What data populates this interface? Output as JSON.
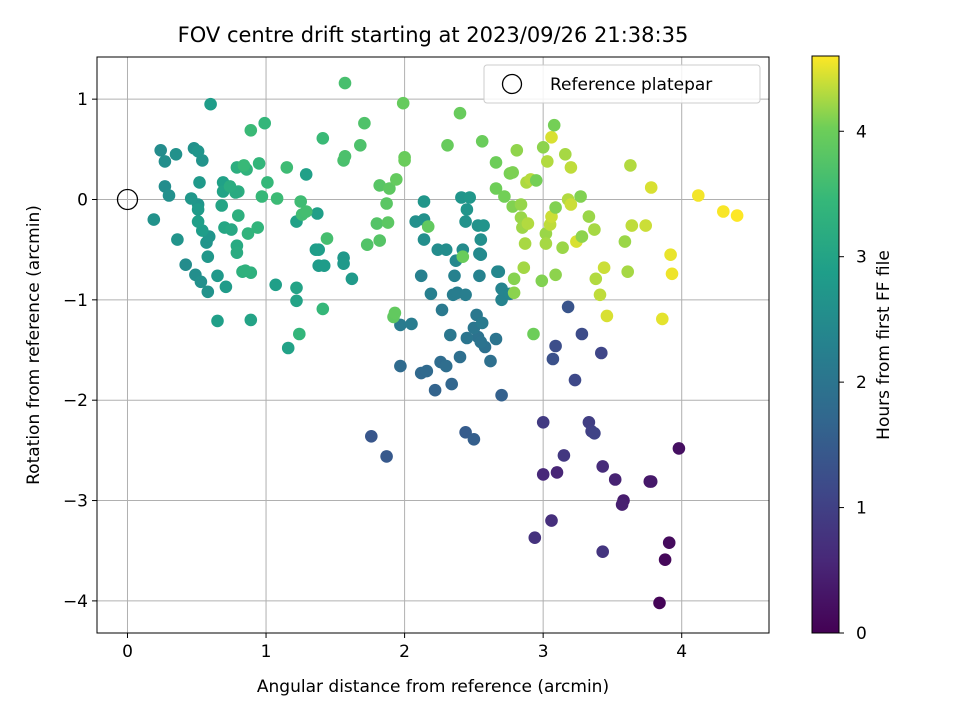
{
  "chart_data": {
    "type": "scatter",
    "title": "FOV centre drift starting at 2023/09/26 21:38:35",
    "xlabel": "Angular distance from reference (arcmin)",
    "ylabel": "Rotation from reference (arcmin)",
    "xlim": [
      -0.22,
      4.63
    ],
    "ylim": [
      -4.32,
      1.42
    ],
    "xticks": [
      0,
      1,
      2,
      3,
      4
    ],
    "yticks": [
      -4,
      -3,
      -2,
      -1,
      0,
      1
    ],
    "grid": true,
    "legend": {
      "position": "top-right",
      "label": "Reference platepar"
    },
    "reference_point": {
      "x": 0,
      "y": 0
    },
    "colorbar": {
      "label": "Hours from first FF file",
      "colormap": "viridis",
      "min": 0,
      "max": 4.6,
      "ticks": [
        0,
        1,
        2,
        3,
        4
      ]
    },
    "points": [
      {
        "x": 3.84,
        "y": -4.02,
        "c": 0.05
      },
      {
        "x": 3.88,
        "y": -3.59,
        "c": 0.1
      },
      {
        "x": 3.91,
        "y": -3.42,
        "c": 0.15
      },
      {
        "x": 3.98,
        "y": -2.48,
        "c": 0.2
      },
      {
        "x": 3.77,
        "y": -2.81,
        "c": 0.3
      },
      {
        "x": 3.78,
        "y": -2.81,
        "c": 0.35
      },
      {
        "x": 3.58,
        "y": -3.0,
        "c": 0.4
      },
      {
        "x": 3.57,
        "y": -3.04,
        "c": 0.45
      },
      {
        "x": 3.52,
        "y": -2.79,
        "c": 0.5
      },
      {
        "x": 3.1,
        "y": -2.72,
        "c": 0.55
      },
      {
        "x": 3.0,
        "y": -2.74,
        "c": 0.6
      },
      {
        "x": 3.43,
        "y": -2.66,
        "c": 0.65
      },
      {
        "x": 3.06,
        "y": -3.2,
        "c": 0.7
      },
      {
        "x": 2.94,
        "y": -3.37,
        "c": 0.75
      },
      {
        "x": 3.43,
        "y": -3.51,
        "c": 0.8
      },
      {
        "x": 3.15,
        "y": -2.55,
        "c": 0.85
      },
      {
        "x": 3.0,
        "y": -2.22,
        "c": 0.9
      },
      {
        "x": 3.33,
        "y": -2.22,
        "c": 0.95
      },
      {
        "x": 3.35,
        "y": -2.31,
        "c": 1.0
      },
      {
        "x": 3.37,
        "y": -2.33,
        "c": 1.05
      },
      {
        "x": 3.42,
        "y": -1.53,
        "c": 1.1
      },
      {
        "x": 3.23,
        "y": -1.8,
        "c": 1.15
      },
      {
        "x": 3.28,
        "y": -1.34,
        "c": 1.2
      },
      {
        "x": 3.09,
        "y": -1.46,
        "c": 1.25
      },
      {
        "x": 3.07,
        "y": -1.59,
        "c": 1.3
      },
      {
        "x": 3.18,
        "y": -1.07,
        "c": 1.35
      },
      {
        "x": 1.76,
        "y": -2.36,
        "c": 1.4
      },
      {
        "x": 1.87,
        "y": -2.56,
        "c": 1.45
      },
      {
        "x": 2.44,
        "y": -2.32,
        "c": 1.5
      },
      {
        "x": 2.5,
        "y": -2.39,
        "c": 1.55
      },
      {
        "x": 2.7,
        "y": -1.95,
        "c": 1.6
      },
      {
        "x": 2.22,
        "y": -1.9,
        "c": 1.65
      },
      {
        "x": 2.34,
        "y": -1.84,
        "c": 1.7
      },
      {
        "x": 2.12,
        "y": -1.73,
        "c": 1.75
      },
      {
        "x": 2.16,
        "y": -1.71,
        "c": 1.78
      },
      {
        "x": 1.97,
        "y": -1.66,
        "c": 1.8
      },
      {
        "x": 2.26,
        "y": -1.62,
        "c": 1.82
      },
      {
        "x": 2.3,
        "y": -1.66,
        "c": 1.85
      },
      {
        "x": 2.4,
        "y": -1.57,
        "c": 1.88
      },
      {
        "x": 2.62,
        "y": -1.61,
        "c": 1.9
      },
      {
        "x": 2.58,
        "y": -1.47,
        "c": 1.92
      },
      {
        "x": 2.53,
        "y": -1.37,
        "c": 1.95
      },
      {
        "x": 2.55,
        "y": -1.42,
        "c": 1.97
      },
      {
        "x": 2.66,
        "y": -1.39,
        "c": 2.0
      },
      {
        "x": 2.45,
        "y": -1.38,
        "c": 2.02
      },
      {
        "x": 2.5,
        "y": -1.28,
        "c": 2.04
      },
      {
        "x": 2.33,
        "y": -1.35,
        "c": 2.06
      },
      {
        "x": 2.52,
        "y": -1.15,
        "c": 2.08
      },
      {
        "x": 2.27,
        "y": -1.1,
        "c": 2.1
      },
      {
        "x": 2.56,
        "y": -1.23,
        "c": 2.12
      },
      {
        "x": 1.97,
        "y": -1.25,
        "c": 2.14
      },
      {
        "x": 2.05,
        "y": -1.24,
        "c": 2.16
      },
      {
        "x": 2.35,
        "y": -0.95,
        "c": 2.18
      },
      {
        "x": 2.38,
        "y": -0.93,
        "c": 2.2
      },
      {
        "x": 2.44,
        "y": -0.95,
        "c": 2.22
      },
      {
        "x": 2.19,
        "y": -0.94,
        "c": 2.24
      },
      {
        "x": 2.12,
        "y": -0.76,
        "c": 2.26
      },
      {
        "x": 2.36,
        "y": -0.76,
        "c": 2.28
      },
      {
        "x": 2.54,
        "y": -0.76,
        "c": 2.3
      },
      {
        "x": 2.7,
        "y": -1.0,
        "c": 2.32
      },
      {
        "x": 2.7,
        "y": -0.89,
        "c": 2.34
      },
      {
        "x": 2.76,
        "y": -0.94,
        "c": 2.36
      },
      {
        "x": 2.68,
        "y": -0.72,
        "c": 2.38
      },
      {
        "x": 2.67,
        "y": -0.72,
        "c": 2.4
      },
      {
        "x": 2.37,
        "y": -0.61,
        "c": 2.42
      },
      {
        "x": 2.54,
        "y": -0.54,
        "c": 2.44
      },
      {
        "x": 2.55,
        "y": -0.55,
        "c": 2.46
      },
      {
        "x": 2.42,
        "y": -0.5,
        "c": 2.48
      },
      {
        "x": 2.24,
        "y": -0.5,
        "c": 2.5
      },
      {
        "x": 2.3,
        "y": -0.5,
        "c": 2.52
      },
      {
        "x": 2.14,
        "y": -0.4,
        "c": 2.54
      },
      {
        "x": 2.55,
        "y": -0.4,
        "c": 2.56
      },
      {
        "x": 2.08,
        "y": -0.22,
        "c": 2.58
      },
      {
        "x": 2.14,
        "y": -0.2,
        "c": 2.6
      },
      {
        "x": 2.44,
        "y": -0.22,
        "c": 2.62
      },
      {
        "x": 2.53,
        "y": -0.26,
        "c": 2.64
      },
      {
        "x": 2.57,
        "y": -0.26,
        "c": 2.66
      },
      {
        "x": 2.45,
        "y": -0.1,
        "c": 2.68
      },
      {
        "x": 2.41,
        "y": 0.02,
        "c": 2.7
      },
      {
        "x": 2.14,
        "y": -0.02,
        "c": 2.72
      },
      {
        "x": 2.47,
        "y": 0.02,
        "c": 2.74
      },
      {
        "x": 1.56,
        "y": -0.58,
        "c": 2.76
      },
      {
        "x": 1.56,
        "y": -0.64,
        "c": 2.78
      },
      {
        "x": 1.62,
        "y": -0.79,
        "c": 2.8
      },
      {
        "x": 1.38,
        "y": -0.66,
        "c": 2.82
      },
      {
        "x": 1.42,
        "y": -0.66,
        "c": 2.84
      },
      {
        "x": 1.36,
        "y": -0.5,
        "c": 2.86
      },
      {
        "x": 1.38,
        "y": -0.5,
        "c": 2.88
      },
      {
        "x": 1.37,
        "y": -0.14,
        "c": 2.9
      },
      {
        "x": 1.29,
        "y": 0.25,
        "c": 2.92
      },
      {
        "x": 1.22,
        "y": -0.22,
        "c": 2.94
      },
      {
        "x": 1.16,
        "y": -1.48,
        "c": 2.96
      },
      {
        "x": 1.22,
        "y": -1.01,
        "c": 2.98
      },
      {
        "x": 1.22,
        "y": -0.88,
        "c": 3.0
      },
      {
        "x": 1.07,
        "y": -0.85,
        "c": 2.9
      },
      {
        "x": 0.24,
        "y": 0.49,
        "c": 2.5
      },
      {
        "x": 0.27,
        "y": 0.38,
        "c": 2.55
      },
      {
        "x": 0.35,
        "y": 0.45,
        "c": 2.6
      },
      {
        "x": 0.27,
        "y": 0.13,
        "c": 2.52
      },
      {
        "x": 0.3,
        "y": 0.04,
        "c": 2.58
      },
      {
        "x": 0.19,
        "y": -0.2,
        "c": 2.62
      },
      {
        "x": 0.36,
        "y": -0.4,
        "c": 2.66
      },
      {
        "x": 0.42,
        "y": -0.65,
        "c": 2.5
      },
      {
        "x": 0.49,
        "y": -0.75,
        "c": 2.54
      },
      {
        "x": 0.53,
        "y": -0.82,
        "c": 2.58
      },
      {
        "x": 0.58,
        "y": -0.92,
        "c": 2.62
      },
      {
        "x": 0.57,
        "y": -0.43,
        "c": 2.66
      },
      {
        "x": 0.59,
        "y": -0.37,
        "c": 2.7
      },
      {
        "x": 0.58,
        "y": -0.57,
        "c": 2.74
      },
      {
        "x": 0.65,
        "y": -0.76,
        "c": 2.78
      },
      {
        "x": 0.71,
        "y": -0.87,
        "c": 2.82
      },
      {
        "x": 0.54,
        "y": -0.31,
        "c": 2.86
      },
      {
        "x": 0.51,
        "y": -0.22,
        "c": 2.9
      },
      {
        "x": 0.51,
        "y": -0.05,
        "c": 2.7
      },
      {
        "x": 0.46,
        "y": 0.01,
        "c": 2.74
      },
      {
        "x": 0.52,
        "y": 0.17,
        "c": 2.78
      },
      {
        "x": 0.51,
        "y": -0.1,
        "c": 2.82
      },
      {
        "x": 0.48,
        "y": 0.51,
        "c": 2.6
      },
      {
        "x": 0.54,
        "y": 0.39,
        "c": 2.64
      },
      {
        "x": 0.51,
        "y": 0.48,
        "c": 2.68
      },
      {
        "x": 0.6,
        "y": 0.95,
        "c": 2.85
      },
      {
        "x": 0.65,
        "y": -1.21,
        "c": 2.9
      },
      {
        "x": 0.89,
        "y": -1.2,
        "c": 3.0
      },
      {
        "x": 0.69,
        "y": 0.17,
        "c": 2.94
      },
      {
        "x": 0.69,
        "y": 0.08,
        "c": 2.98
      },
      {
        "x": 0.68,
        "y": -0.06,
        "c": 3.02
      },
      {
        "x": 0.7,
        "y": -0.28,
        "c": 3.06
      },
      {
        "x": 0.75,
        "y": -0.3,
        "c": 3.1
      },
      {
        "x": 0.79,
        "y": -0.46,
        "c": 3.14
      },
      {
        "x": 0.79,
        "y": -0.53,
        "c": 3.18
      },
      {
        "x": 0.8,
        "y": 0.08,
        "c": 3.22
      },
      {
        "x": 0.78,
        "y": 0.07,
        "c": 3.16
      },
      {
        "x": 0.74,
        "y": 0.13,
        "c": 3.2
      },
      {
        "x": 0.79,
        "y": 0.32,
        "c": 3.24
      },
      {
        "x": 0.8,
        "y": -0.16,
        "c": 3.26
      },
      {
        "x": 0.83,
        "y": -0.72,
        "c": 3.28
      },
      {
        "x": 0.89,
        "y": -0.73,
        "c": 3.3
      },
      {
        "x": 0.85,
        "y": -0.71,
        "c": 3.32
      },
      {
        "x": 0.86,
        "y": 0.3,
        "c": 3.34
      },
      {
        "x": 0.87,
        "y": -0.34,
        "c": 3.36
      },
      {
        "x": 0.94,
        "y": -0.28,
        "c": 3.38
      },
      {
        "x": 0.95,
        "y": 0.36,
        "c": 3.4
      },
      {
        "x": 0.99,
        "y": 0.76,
        "c": 3.42
      },
      {
        "x": 1.01,
        "y": 0.17,
        "c": 3.44
      },
      {
        "x": 0.97,
        "y": 0.03,
        "c": 3.46
      },
      {
        "x": 0.84,
        "y": 0.34,
        "c": 3.48
      },
      {
        "x": 0.89,
        "y": 0.69,
        "c": 3.5
      },
      {
        "x": 1.08,
        "y": 0.01,
        "c": 3.52
      },
      {
        "x": 1.15,
        "y": 0.32,
        "c": 3.54
      },
      {
        "x": 1.25,
        "y": -0.02,
        "c": 3.56
      },
      {
        "x": 1.26,
        "y": -0.15,
        "c": 3.58
      },
      {
        "x": 1.29,
        "y": -0.12,
        "c": 3.6
      },
      {
        "x": 1.24,
        "y": -1.34,
        "c": 3.4
      },
      {
        "x": 1.41,
        "y": 0.61,
        "c": 3.5
      },
      {
        "x": 1.41,
        "y": -1.09,
        "c": 3.45
      },
      {
        "x": 1.44,
        "y": -0.39,
        "c": 3.62
      },
      {
        "x": 1.57,
        "y": 1.16,
        "c": 3.64
      },
      {
        "x": 1.56,
        "y": 0.39,
        "c": 3.66
      },
      {
        "x": 1.57,
        "y": 0.43,
        "c": 3.68
      },
      {
        "x": 1.68,
        "y": 0.54,
        "c": 3.7
      },
      {
        "x": 1.71,
        "y": 0.76,
        "c": 3.72
      },
      {
        "x": 1.73,
        "y": -0.45,
        "c": 3.74
      },
      {
        "x": 1.8,
        "y": -0.24,
        "c": 3.76
      },
      {
        "x": 1.82,
        "y": -0.41,
        "c": 3.78
      },
      {
        "x": 1.82,
        "y": 0.14,
        "c": 3.8
      },
      {
        "x": 1.87,
        "y": -0.04,
        "c": 3.82
      },
      {
        "x": 1.88,
        "y": -0.23,
        "c": 3.84
      },
      {
        "x": 1.89,
        "y": 0.11,
        "c": 3.86
      },
      {
        "x": 1.92,
        "y": -1.17,
        "c": 3.88
      },
      {
        "x": 1.93,
        "y": -1.13,
        "c": 3.9
      },
      {
        "x": 1.94,
        "y": 0.2,
        "c": 3.92
      },
      {
        "x": 1.99,
        "y": 0.96,
        "c": 3.94
      },
      {
        "x": 2.0,
        "y": 0.42,
        "c": 3.96
      },
      {
        "x": 2.0,
        "y": 0.39,
        "c": 3.98
      },
      {
        "x": 2.17,
        "y": -0.27,
        "c": 3.9
      },
      {
        "x": 2.31,
        "y": 0.54,
        "c": 3.95
      },
      {
        "x": 2.4,
        "y": 0.86,
        "c": 3.96
      },
      {
        "x": 2.42,
        "y": -0.57,
        "c": 3.97
      },
      {
        "x": 2.56,
        "y": 0.58,
        "c": 3.98
      },
      {
        "x": 2.66,
        "y": 0.37,
        "c": 4.0
      },
      {
        "x": 2.66,
        "y": 0.11,
        "c": 4.02
      },
      {
        "x": 2.72,
        "y": 0.03,
        "c": 4.04
      },
      {
        "x": 2.76,
        "y": 0.26,
        "c": 4.06
      },
      {
        "x": 2.78,
        "y": 0.27,
        "c": 4.08
      },
      {
        "x": 2.78,
        "y": -0.07,
        "c": 4.1
      },
      {
        "x": 2.79,
        "y": -0.79,
        "c": 4.12
      },
      {
        "x": 2.79,
        "y": -0.93,
        "c": 4.14
      },
      {
        "x": 2.81,
        "y": 0.49,
        "c": 4.16
      },
      {
        "x": 2.84,
        "y": -0.05,
        "c": 4.18
      },
      {
        "x": 2.84,
        "y": -0.18,
        "c": 4.2
      },
      {
        "x": 2.85,
        "y": -0.28,
        "c": 4.22
      },
      {
        "x": 2.86,
        "y": -0.68,
        "c": 4.24
      },
      {
        "x": 2.87,
        "y": -0.44,
        "c": 4.26
      },
      {
        "x": 2.88,
        "y": 0.17,
        "c": 4.28
      },
      {
        "x": 2.89,
        "y": -0.24,
        "c": 4.3
      },
      {
        "x": 2.91,
        "y": 0.2,
        "c": 4.32
      },
      {
        "x": 2.93,
        "y": -1.34,
        "c": 4.0
      },
      {
        "x": 2.95,
        "y": 0.19,
        "c": 4.05
      },
      {
        "x": 2.99,
        "y": -0.81,
        "c": 4.1
      },
      {
        "x": 3.0,
        "y": 0.52,
        "c": 4.15
      },
      {
        "x": 3.02,
        "y": -0.34,
        "c": 4.2
      },
      {
        "x": 3.02,
        "y": -0.44,
        "c": 4.25
      },
      {
        "x": 3.03,
        "y": 0.38,
        "c": 4.3
      },
      {
        "x": 3.05,
        "y": -0.25,
        "c": 4.35
      },
      {
        "x": 3.06,
        "y": -0.17,
        "c": 4.4
      },
      {
        "x": 3.06,
        "y": 0.62,
        "c": 4.45
      },
      {
        "x": 3.08,
        "y": 0.74,
        "c": 4.05
      },
      {
        "x": 3.09,
        "y": -0.08,
        "c": 4.1
      },
      {
        "x": 3.09,
        "y": -0.75,
        "c": 4.15
      },
      {
        "x": 3.14,
        "y": -0.48,
        "c": 4.2
      },
      {
        "x": 3.16,
        "y": 0.45,
        "c": 4.25
      },
      {
        "x": 3.18,
        "y": -0.0,
        "c": 4.3
      },
      {
        "x": 3.2,
        "y": 0.32,
        "c": 4.35
      },
      {
        "x": 3.2,
        "y": -0.05,
        "c": 4.4
      },
      {
        "x": 3.24,
        "y": -0.42,
        "c": 4.45
      },
      {
        "x": 3.27,
        "y": 0.03,
        "c": 4.1
      },
      {
        "x": 3.28,
        "y": -0.37,
        "c": 4.15
      },
      {
        "x": 3.33,
        "y": -0.17,
        "c": 4.2
      },
      {
        "x": 3.37,
        "y": -0.3,
        "c": 4.25
      },
      {
        "x": 3.38,
        "y": -0.79,
        "c": 4.3
      },
      {
        "x": 3.41,
        "y": -0.95,
        "c": 4.35
      },
      {
        "x": 3.44,
        "y": -0.68,
        "c": 4.4
      },
      {
        "x": 3.46,
        "y": -1.16,
        "c": 4.45
      },
      {
        "x": 3.59,
        "y": -0.42,
        "c": 4.2
      },
      {
        "x": 3.61,
        "y": -0.72,
        "c": 4.25
      },
      {
        "x": 3.63,
        "y": 0.34,
        "c": 4.3
      },
      {
        "x": 3.64,
        "y": -0.26,
        "c": 4.35
      },
      {
        "x": 3.74,
        "y": -0.26,
        "c": 4.4
      },
      {
        "x": 3.78,
        "y": 0.12,
        "c": 4.45
      },
      {
        "x": 3.86,
        "y": -1.19,
        "c": 4.5
      },
      {
        "x": 3.92,
        "y": -0.55,
        "c": 4.52
      },
      {
        "x": 3.93,
        "y": -0.74,
        "c": 4.54
      },
      {
        "x": 4.12,
        "y": 0.04,
        "c": 4.56
      },
      {
        "x": 4.3,
        "y": -0.12,
        "c": 4.58
      },
      {
        "x": 4.4,
        "y": -0.16,
        "c": 4.6
      }
    ]
  }
}
